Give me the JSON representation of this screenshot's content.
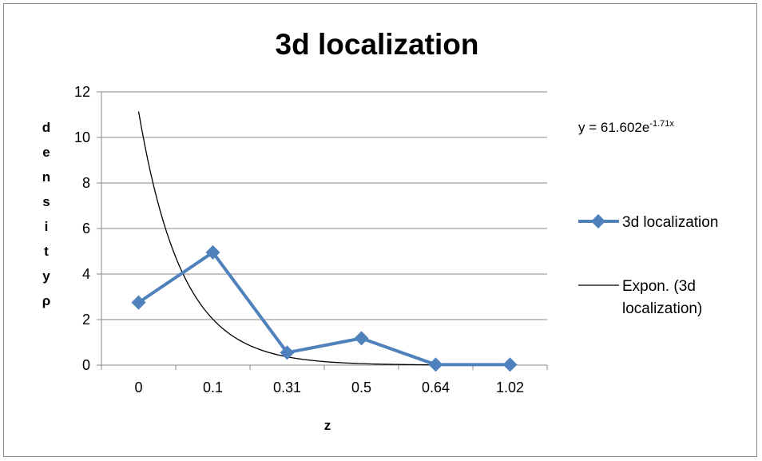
{
  "chart_data": {
    "type": "line",
    "title": "3d localization",
    "xlabel": "z",
    "ylabel": "densityρ",
    "categories": [
      "0",
      "0.1",
      "0.31",
      "0.5",
      "0.64",
      "1.02"
    ],
    "ylim": [
      0,
      12
    ],
    "yticks": [
      0,
      2,
      4,
      6,
      8,
      10,
      12
    ],
    "grid": true,
    "legend_position": "right",
    "series": [
      {
        "name": "3d localization",
        "values": [
          2.75,
          4.95,
          0.55,
          1.18,
          0.02,
          0.02
        ],
        "color": "#4f81bd",
        "marker": "diamond"
      }
    ],
    "trendline": {
      "name": "Expon. (3d localization)",
      "type": "exponential",
      "equation_base": "y = 61.602e",
      "equation_exponent": "-1.71x",
      "a": 61.602,
      "b": -1.71,
      "color": "#000000"
    }
  }
}
